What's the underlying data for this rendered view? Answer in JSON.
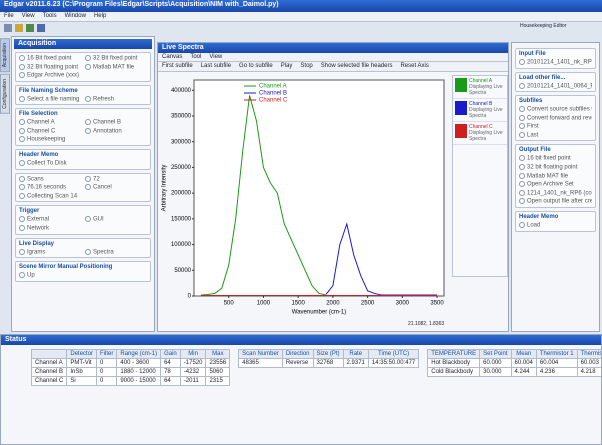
{
  "window": {
    "title": "Edgar v2011.6.23 (C:\\Program Files\\Edgar\\Scripts\\Acquisition\\NIM with_Daimol.py)",
    "menu": [
      "File",
      "View",
      "Tools",
      "Window",
      "Help"
    ],
    "right_note": "Housekeeping Editor"
  },
  "side_tabs": [
    "Acquisition",
    "Configuration"
  ],
  "acquisition": {
    "title": "Acquisition",
    "sections": [
      {
        "items": [
          "16 Bit fixed point",
          "32 Bit fixed point",
          "32 Bit floating point",
          "Matlab MAT file",
          "Edgar Archive (xxx)"
        ]
      },
      {
        "heading": "File Naming Scheme",
        "items": [
          "Select a file naming scheme",
          "Refresh"
        ]
      },
      {
        "heading": "File Selection",
        "items": [
          "Channel A",
          "Channel B",
          "Channel C",
          "Annotation",
          "Housekeeping"
        ]
      },
      {
        "heading": "Header Memo",
        "items": [
          "Collect To Disk"
        ]
      },
      {
        "items": [
          "Scans",
          "72",
          "76.16 seconds",
          "Cancel",
          "Collecting Scan 14"
        ]
      },
      {
        "heading": "Trigger",
        "items": [
          "External",
          "GUI",
          "Network"
        ]
      },
      {
        "heading": "Live Display",
        "items": [
          "Igrams",
          "Spectra"
        ]
      },
      {
        "heading": "Scene Mirror Manual Positioning",
        "items": [
          "Up"
        ]
      }
    ]
  },
  "spectra": {
    "title": "Live Spectra",
    "menu": [
      "Canvas",
      "Tool",
      "View"
    ],
    "toolbar": [
      "First subfile",
      "Last subfile",
      "Go to subfile",
      "Play",
      "Stop",
      "Show selected file headers",
      "Reset Axis"
    ],
    "legend_note": "Displaying Live Spectra",
    "cursor": "21.1082, 1.8363"
  },
  "chart_data": {
    "type": "line",
    "xlabel": "Wavenumber (cm-1)",
    "ylabel": "Arbitrary Intensity",
    "x": [
      100,
      200,
      300,
      400,
      500,
      600,
      700,
      800,
      900,
      1000,
      1100,
      1200,
      1300,
      1400,
      1500,
      1600,
      1700,
      1800,
      1900,
      2000,
      2100,
      2200,
      2300,
      2400,
      2500,
      2600,
      2700,
      2800,
      2900,
      3000,
      3100,
      3200,
      3300,
      3400,
      3500
    ],
    "series": [
      {
        "name": "Channel A",
        "color": "#1a9a1a",
        "values": [
          2000,
          3000,
          5000,
          15000,
          60000,
          150000,
          280000,
          390000,
          340000,
          250000,
          220000,
          200000,
          140000,
          110000,
          80000,
          50000,
          20000,
          5000,
          2000,
          null,
          null,
          null,
          null,
          null,
          null,
          null,
          null,
          null,
          null,
          null,
          null,
          null,
          null,
          null,
          null
        ]
      },
      {
        "name": "Channel B",
        "color": "#1a1acc",
        "values": [
          null,
          null,
          null,
          null,
          null,
          null,
          null,
          null,
          null,
          null,
          null,
          null,
          null,
          null,
          null,
          null,
          null,
          null,
          3000,
          20000,
          100000,
          140000,
          80000,
          40000,
          10000,
          5000,
          2000,
          2000,
          2000,
          2000,
          2000,
          2000,
          2000,
          2000,
          2000
        ]
      },
      {
        "name": "Channel C",
        "color": "#cc2020",
        "values": [
          1000,
          1000,
          1000,
          1000,
          1000,
          1000,
          1000,
          1000,
          1000,
          1000,
          1000,
          1000,
          1000,
          1000,
          1000,
          1000,
          1000,
          1000,
          1000,
          1000,
          1000,
          1000,
          1000,
          1000,
          1000,
          1000,
          1000,
          1000,
          1000,
          1000,
          1000,
          1000,
          1000,
          1000,
          1000
        ]
      }
    ],
    "xlim": [
      0,
      3600
    ],
    "xticks": [
      500,
      1000,
      1500,
      2000,
      2500,
      3000,
      3500
    ],
    "ylim": [
      0,
      420000
    ],
    "yticks": [
      0,
      50000,
      100000,
      150000,
      200000,
      250000,
      300000,
      350000,
      400000
    ]
  },
  "file_panel": {
    "sections": [
      {
        "heading": "Input File",
        "items": [
          "20101214_1401_nk_RP6 (cod mod vod)"
        ]
      },
      {
        "heading": "Load other file...",
        "items": [
          "20101214_1401_0064_RR (cod)"
        ]
      },
      {
        "heading": "Subfiles",
        "items": [
          "Convert source subfiles to a single destination subfile",
          "Convert forward and reverse subfiles to separate subfiles",
          "First",
          "Last"
        ]
      },
      {
        "heading": "Output File",
        "items": [
          "16 bit fixed point",
          "32 bit floating point",
          "Matlab MAT file",
          "Open Archive Set",
          "1214_1401_nk_RP6 (cod mod vod)",
          "Open output file after creation"
        ]
      },
      {
        "heading": "Header Memo",
        "items": [
          "Load"
        ]
      }
    ]
  },
  "status": {
    "title": "Status",
    "channels": {
      "columns": [
        "",
        "Detector",
        "Filter",
        "Range (cm-1)",
        "Gain",
        "Min",
        "Max"
      ],
      "rows": [
        [
          "Channel A",
          "PMT-Vit",
          "0",
          "400 - 3600",
          "64",
          "-17520",
          "23556"
        ],
        [
          "Channel B",
          "InSb",
          "0",
          "1880 - 12000",
          "78",
          "-4232",
          "5060"
        ],
        [
          "Channel C",
          "Si",
          "0",
          "9000 - 15000",
          "64",
          "-2011",
          "2315"
        ]
      ]
    },
    "scan": {
      "columns": [
        "Scan Number",
        "Direction",
        "Size (Pt)",
        "Rate",
        "Time (UTC)"
      ],
      "values": [
        "48365",
        "Reverse",
        "32768",
        "2.9371",
        "14:35:50.00:477"
      ]
    },
    "temperatures": {
      "columns": [
        "TEMPERATURE",
        "Set Point",
        "Mean",
        "Thermistor 1",
        "Thermistor 2"
      ],
      "rows": [
        [
          "Hot Blackbody",
          "60.000",
          "60.004",
          "60.004",
          "60.003"
        ],
        [
          "Cold Blackbody",
          "30.000",
          "4.244",
          "4.236",
          "4.218"
        ]
      ]
    }
  }
}
